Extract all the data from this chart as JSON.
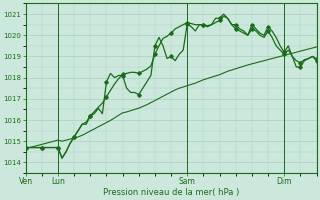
{
  "xlabel": "Pression niveau de la mer( hPa )",
  "bg_color": "#cce8dc",
  "grid_color": "#aacfbe",
  "line_color": "#1a6b1a",
  "ylim": [
    1013.5,
    1021.5
  ],
  "yticks": [
    1014,
    1015,
    1016,
    1017,
    1018,
    1019,
    1020,
    1021
  ],
  "xtick_labels": [
    "Ven",
    "Lun",
    "Sam",
    "Dim"
  ],
  "n_points": 73,
  "line1_x": [
    0,
    1,
    2,
    3,
    4,
    5,
    6,
    7,
    8,
    9,
    10,
    11,
    12,
    13,
    14,
    15,
    16,
    17,
    18,
    19,
    20,
    21,
    22,
    23,
    24,
    25,
    26,
    27,
    28,
    29,
    30,
    31,
    32,
    33,
    34,
    35,
    36,
    37,
    38,
    39,
    40,
    41,
    42,
    43,
    44,
    45,
    46,
    47,
    48,
    49,
    50,
    51,
    52,
    53,
    54,
    55,
    56,
    57,
    58,
    59,
    60,
    61,
    62,
    63,
    64,
    65,
    66,
    67,
    68,
    69,
    70,
    71,
    72
  ],
  "line1_y": [
    1014.7,
    1014.7,
    1014.7,
    1014.7,
    1014.7,
    1014.7,
    1014.7,
    1014.7,
    1014.7,
    1014.2,
    1014.5,
    1014.9,
    1015.2,
    1015.5,
    1015.8,
    1015.8,
    1016.2,
    1016.3,
    1016.55,
    1016.3,
    1017.8,
    1018.2,
    1018.0,
    1018.1,
    1018.1,
    1017.5,
    1017.3,
    1017.3,
    1017.2,
    1017.5,
    1017.8,
    1018.1,
    1019.5,
    1019.9,
    1019.5,
    1018.9,
    1019.0,
    1018.8,
    1019.1,
    1019.3,
    1020.55,
    1020.4,
    1020.2,
    1020.5,
    1020.5,
    1020.4,
    1020.5,
    1020.8,
    1020.8,
    1021.0,
    1020.8,
    1020.5,
    1020.5,
    1020.3,
    1020.2,
    1020.0,
    1020.5,
    1020.3,
    1020.1,
    1020.0,
    1020.4,
    1020.2,
    1019.9,
    1019.5,
    1019.2,
    1019.5,
    1019.0,
    1018.5,
    1018.5,
    1018.8,
    1018.9,
    1019.0,
    1018.8
  ],
  "line2_y": [
    1014.7,
    1014.7,
    1014.75,
    1014.8,
    1014.85,
    1014.9,
    1014.95,
    1015.0,
    1015.05,
    1015.0,
    1015.05,
    1015.1,
    1015.15,
    1015.2,
    1015.28,
    1015.38,
    1015.48,
    1015.58,
    1015.68,
    1015.78,
    1015.88,
    1015.98,
    1016.1,
    1016.22,
    1016.34,
    1016.38,
    1016.44,
    1016.5,
    1016.56,
    1016.64,
    1016.72,
    1016.82,
    1016.92,
    1017.02,
    1017.12,
    1017.22,
    1017.32,
    1017.42,
    1017.5,
    1017.56,
    1017.62,
    1017.68,
    1017.74,
    1017.82,
    1017.9,
    1017.96,
    1018.02,
    1018.08,
    1018.14,
    1018.22,
    1018.3,
    1018.36,
    1018.42,
    1018.48,
    1018.54,
    1018.6,
    1018.65,
    1018.7,
    1018.75,
    1018.8,
    1018.85,
    1018.9,
    1018.95,
    1019.0,
    1019.05,
    1019.1,
    1019.15,
    1019.2,
    1019.25,
    1019.3,
    1019.35,
    1019.4,
    1019.45
  ],
  "line3_y": [
    1014.7,
    1014.7,
    1014.7,
    1014.7,
    1014.7,
    1014.7,
    1014.7,
    1014.7,
    1014.7,
    1014.2,
    1014.5,
    1014.9,
    1015.2,
    1015.5,
    1015.8,
    1015.9,
    1016.2,
    1016.4,
    1016.6,
    1016.8,
    1017.1,
    1017.4,
    1017.7,
    1017.95,
    1018.15,
    1018.2,
    1018.25,
    1018.25,
    1018.2,
    1018.3,
    1018.4,
    1018.55,
    1019.1,
    1019.5,
    1019.85,
    1019.95,
    1020.1,
    1020.3,
    1020.4,
    1020.5,
    1020.6,
    1020.55,
    1020.5,
    1020.5,
    1020.5,
    1020.45,
    1020.5,
    1020.6,
    1020.7,
    1020.9,
    1020.8,
    1020.5,
    1020.3,
    1020.2,
    1020.1,
    1020.0,
    1020.3,
    1020.2,
    1020.0,
    1019.9,
    1020.2,
    1019.9,
    1019.5,
    1019.3,
    1019.1,
    1019.3,
    1019.0,
    1018.8,
    1018.7,
    1018.85,
    1018.9,
    1019.0,
    1018.9
  ],
  "marker_every": 4
}
